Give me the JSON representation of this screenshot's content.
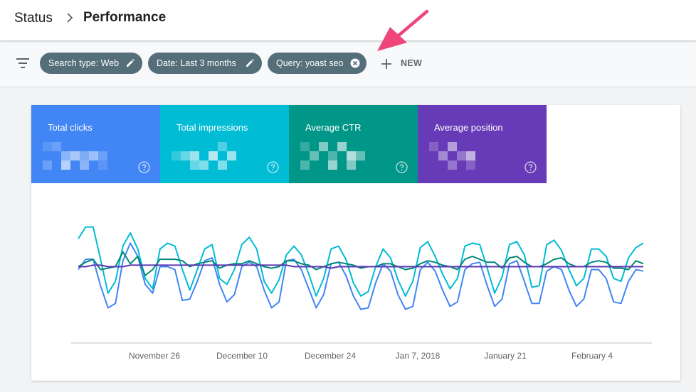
{
  "breadcrumb": {
    "parent": "Status",
    "current": "Performance"
  },
  "filters": [
    {
      "label": "Search type: Web",
      "icon": "pencil-icon"
    },
    {
      "label": "Date: Last 3 months",
      "icon": "pencil-icon"
    },
    {
      "label": "Query: yoast seo",
      "icon": "close-circle-icon"
    }
  ],
  "new_button": {
    "label": "NEW"
  },
  "metrics": [
    {
      "label": "Total clicks",
      "color": "#4285f4"
    },
    {
      "label": "Total impressions",
      "color": "#00bcd4"
    },
    {
      "label": "Average CTR",
      "color": "#009688"
    },
    {
      "label": "Average position",
      "color": "#673ab7"
    }
  ],
  "chart_data": {
    "type": "line",
    "x_ticks": [
      "November 26",
      "December 10",
      "December 24",
      "Jan 7, 2018",
      "January 21",
      "February 4"
    ],
    "series": [
      {
        "color": "#4285f4",
        "values": [
          62,
          55,
          55,
          73,
          88,
          85,
          56,
          44,
          53,
          72,
          78,
          60,
          60,
          62,
          83,
          82,
          70,
          56,
          54,
          72,
          84,
          79,
          60,
          57,
          60,
          76,
          88,
          84,
          56,
          55,
          62,
          75,
          88,
          79,
          58,
          57,
          66,
          80,
          89,
          88,
          71,
          58,
          63,
          79,
          89,
          87,
          62,
          57,
          63,
          76,
          87,
          84,
          62,
          58,
          57,
          73,
          87,
          82,
          58,
          56,
          70,
          85,
          85,
          63,
          60,
          62,
          76,
          87,
          82,
          62,
          62,
          68,
          84,
          85,
          70,
          62,
          63
        ]
      },
      {
        "color": "#00bcd4",
        "values": [
          41,
          33,
          33,
          55,
          78,
          70,
          46,
          37,
          48,
          68,
          75,
          48,
          44,
          46,
          62,
          76,
          62,
          48,
          45,
          68,
          72,
          62,
          45,
          40,
          48,
          70,
          78,
          69,
          52,
          46,
          52,
          65,
          80,
          68,
          48,
          46,
          55,
          71,
          80,
          77,
          60,
          48,
          54,
          69,
          80,
          70,
          47,
          43,
          53,
          65,
          75,
          68,
          46,
          44,
          45,
          61,
          78,
          67,
          45,
          43,
          52,
          74,
          73,
          45,
          42,
          49,
          62,
          73,
          68,
          48,
          48,
          53,
          68,
          70,
          54,
          47,
          44
        ]
      },
      {
        "color": "#00897b",
        "values": [
          60,
          57,
          55,
          62,
          61,
          60,
          50,
          58,
          53,
          66,
          62,
          55,
          55,
          55,
          56,
          60,
          58,
          57,
          56,
          61,
          59,
          58,
          58,
          56,
          58,
          60,
          61,
          60,
          56,
          56,
          58,
          59,
          62,
          60,
          58,
          57,
          58,
          59,
          61,
          60,
          60,
          58,
          58,
          60,
          62,
          61,
          58,
          56,
          57,
          59,
          60,
          62,
          55,
          53,
          55,
          57,
          57,
          61,
          54,
          53,
          57,
          60,
          60,
          58,
          55,
          54,
          58,
          60,
          60,
          57,
          56,
          57,
          61,
          61,
          62,
          56,
          58
        ]
      },
      {
        "color": "#5e35b1",
        "values": [
          60,
          60,
          59,
          59,
          60,
          60,
          60,
          59,
          59,
          59,
          59,
          59,
          59,
          59,
          59,
          59,
          59,
          59,
          59,
          59,
          59,
          59,
          59,
          59,
          59,
          59,
          59,
          59,
          59,
          60,
          60,
          60,
          60,
          60,
          61,
          60,
          60,
          60,
          60,
          60,
          60,
          60,
          60,
          60,
          60,
          60,
          60,
          60,
          60,
          60,
          60,
          60,
          60,
          60,
          60,
          60,
          60,
          60,
          60,
          60,
          60,
          60,
          60,
          60,
          60,
          60,
          60,
          60,
          60,
          60,
          60,
          60,
          60,
          60,
          60,
          60,
          60
        ]
      }
    ],
    "ylim": [
      25,
      95
    ],
    "grid": false,
    "legend": "none"
  }
}
